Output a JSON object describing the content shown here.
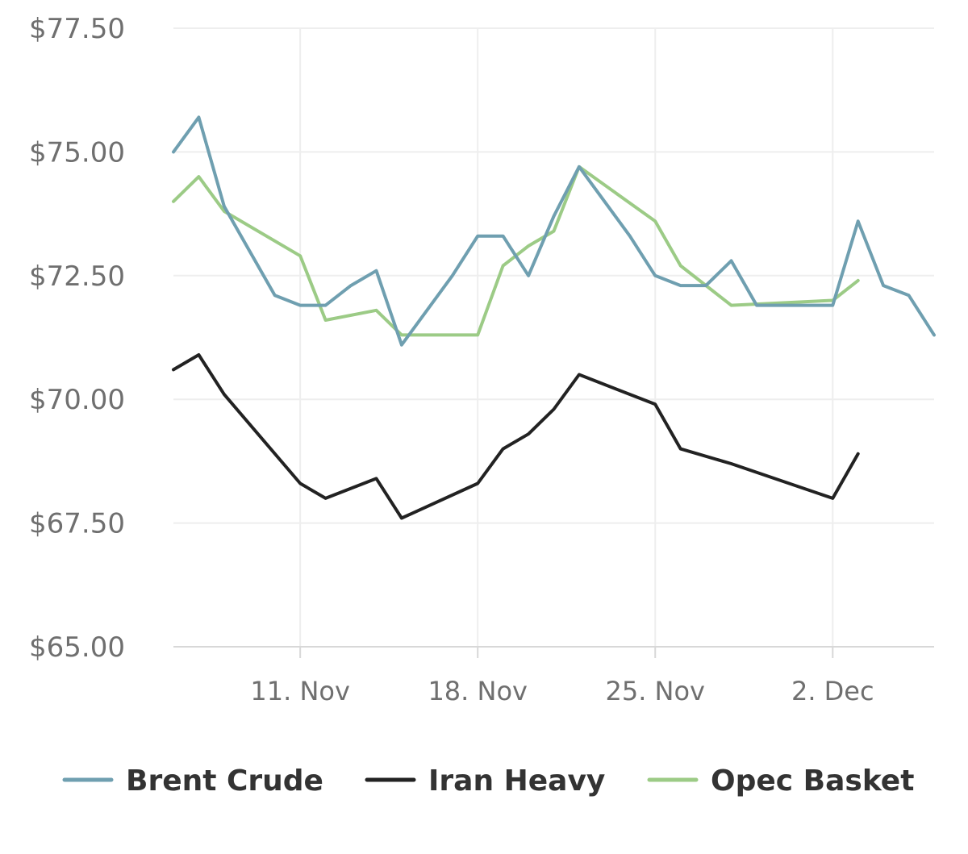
{
  "chart_data": {
    "type": "line",
    "title": "",
    "xlabel": "",
    "ylabel": "",
    "x": [
      "Nov 6",
      "Nov 7",
      "Nov 8",
      "Nov 9",
      "Nov 10",
      "Nov 11",
      "Nov 12",
      "Nov 13",
      "Nov 14",
      "Nov 15",
      "Nov 16",
      "Nov 17",
      "Nov 18",
      "Nov 19",
      "Nov 20",
      "Nov 21",
      "Nov 22",
      "Nov 23",
      "Nov 24",
      "Nov 25",
      "Nov 26",
      "Nov 27",
      "Nov 28",
      "Nov 29",
      "Nov 30",
      "Dec 1",
      "Dec 2",
      "Dec 3",
      "Dec 4",
      "Dec 5",
      "Dec 6"
    ],
    "xlim": [
      "Nov 6",
      "Nov 6 + 30 days"
    ],
    "ylim": [
      65,
      77.5
    ],
    "y_ticks": [
      "$77.50",
      "$75.00",
      "$72.50",
      "$70.00",
      "$67.50",
      "$65.00"
    ],
    "y_tick_values": [
      77.5,
      75,
      72.5,
      70,
      67.5,
      65
    ],
    "x_ticks": [
      "11. Nov",
      "18. Nov",
      "25. Nov",
      "2. Dec"
    ],
    "x_tick_values": [
      "Nov 11",
      "Nov 18",
      "Nov 25",
      "Dec 2"
    ],
    "grid": true,
    "legend_position": "bottom",
    "colors": {
      "brent": "#6f9fb0",
      "iran": "#222222",
      "opec": "#9ccb86",
      "grid": "#eeeeee",
      "axis": "#d8d8d8"
    },
    "series": [
      {
        "name": "Brent Crude",
        "color": "#6f9fb0",
        "points": [
          [
            "Nov 6",
            75.0
          ],
          [
            "Nov 7",
            75.7
          ],
          [
            "Nov 8",
            73.9
          ],
          [
            "Nov 9",
            73.0
          ],
          [
            "Nov 10",
            72.1
          ],
          [
            "Nov 11",
            71.9
          ],
          [
            "Nov 12",
            71.9
          ],
          [
            "Nov 13",
            72.3
          ],
          [
            "Nov 14",
            72.6
          ],
          [
            "Nov 15",
            71.1
          ],
          [
            "Nov 16",
            71.8
          ],
          [
            "Nov 17",
            72.5
          ],
          [
            "Nov 18",
            73.3
          ],
          [
            "Nov 19",
            73.3
          ],
          [
            "Nov 20",
            72.5
          ],
          [
            "Nov 21",
            73.7
          ],
          [
            "Nov 22",
            74.7
          ],
          [
            "Nov 23",
            74.0
          ],
          [
            "Nov 24",
            73.3
          ],
          [
            "Nov 25",
            72.5
          ],
          [
            "Nov 26",
            72.3
          ],
          [
            "Nov 27",
            72.3
          ],
          [
            "Nov 28",
            72.8
          ],
          [
            "Nov 29",
            71.9
          ],
          [
            "Nov 30",
            71.9
          ],
          [
            "Dec 1",
            71.9
          ],
          [
            "Dec 2",
            71.9
          ],
          [
            "Dec 3",
            73.6
          ],
          [
            "Dec 4",
            72.3
          ],
          [
            "Dec 5",
            72.1
          ],
          [
            "Dec 6",
            71.3
          ]
        ]
      },
      {
        "name": "Iran Heavy",
        "color": "#222222",
        "points": [
          [
            "Nov 6",
            70.6
          ],
          [
            "Nov 7",
            70.9
          ],
          [
            "Nov 8",
            70.1
          ],
          [
            "Nov 11",
            68.3
          ],
          [
            "Nov 12",
            68.0
          ],
          [
            "Nov 14",
            68.4
          ],
          [
            "Nov 15",
            67.6
          ],
          [
            "Nov 18",
            68.3
          ],
          [
            "Nov 19",
            69.0
          ],
          [
            "Nov 20",
            69.3
          ],
          [
            "Nov 21",
            69.8
          ],
          [
            "Nov 22",
            70.5
          ],
          [
            "Nov 25",
            69.9
          ],
          [
            "Nov 26",
            69.0
          ],
          [
            "Nov 28",
            68.7
          ],
          [
            "Dec 2",
            68.0
          ],
          [
            "Dec 3",
            68.9
          ]
        ]
      },
      {
        "name": "Opec Basket",
        "color": "#9ccb86",
        "points": [
          [
            "Nov 6",
            74.0
          ],
          [
            "Nov 7",
            74.5
          ],
          [
            "Nov 8",
            73.8
          ],
          [
            "Nov 11",
            72.9
          ],
          [
            "Nov 12",
            71.6
          ],
          [
            "Nov 14",
            71.8
          ],
          [
            "Nov 15",
            71.3
          ],
          [
            "Nov 18",
            71.3
          ],
          [
            "Nov 19",
            72.7
          ],
          [
            "Nov 20",
            73.1
          ],
          [
            "Nov 21",
            73.4
          ],
          [
            "Nov 22",
            74.7
          ],
          [
            "Nov 25",
            73.6
          ],
          [
            "Nov 26",
            72.7
          ],
          [
            "Nov 28",
            71.9
          ],
          [
            "Dec 2",
            72.0
          ],
          [
            "Dec 3",
            72.4
          ]
        ]
      }
    ]
  }
}
